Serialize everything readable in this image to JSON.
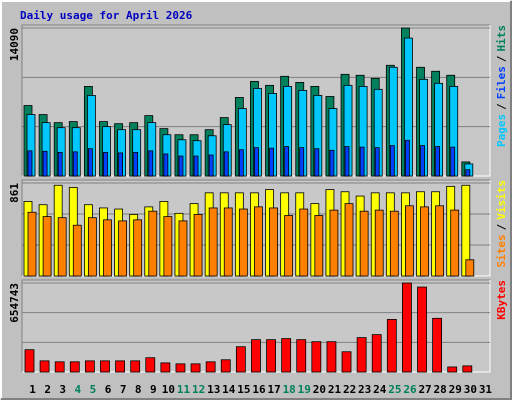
{
  "chart_data": [
    {
      "type": "bar",
      "title": "Daily usage for April 2026",
      "title_color": "#0000c0",
      "ylim": [
        0,
        14090
      ],
      "yticks": [
        14090
      ],
      "grid_divisions": 3,
      "legend_separator": "/",
      "series": [
        {
          "name": "Hits",
          "color": "#00805c",
          "values": [
            6710,
            5850,
            5080,
            5180,
            8530,
            5180,
            4980,
            5080,
            5750,
            4510,
            3930,
            3930,
            4410,
            5560,
            7480,
            9010,
            8630,
            9490,
            8910,
            8530,
            7570,
            9680,
            9590,
            9300,
            10540,
            14090,
            10350,
            9970,
            9590,
            1340,
            null
          ]
        },
        {
          "name": "Files",
          "color": "#0040ff",
          "values": [
            2400,
            2350,
            2250,
            2300,
            2600,
            2250,
            2200,
            2250,
            2400,
            2100,
            1900,
            1900,
            2000,
            2300,
            2500,
            2700,
            2650,
            2800,
            2700,
            2600,
            2450,
            2800,
            2750,
            2700,
            2900,
            3400,
            2900,
            2800,
            2750,
            600,
            null
          ]
        },
        {
          "name": "Pages",
          "color": "#00c8ff",
          "values": [
            5850,
            5080,
            4600,
            4600,
            7670,
            4700,
            4410,
            4410,
            5080,
            3930,
            3450,
            3360,
            3830,
            4890,
            6420,
            8340,
            7860,
            8530,
            8150,
            7670,
            6420,
            8630,
            8530,
            8250,
            10350,
            13130,
            9200,
            8820,
            8530,
            1150,
            null
          ]
        }
      ]
    },
    {
      "type": "bar",
      "ylim": [
        0,
        861
      ],
      "yticks": [
        861
      ],
      "grid_divisions": 3,
      "legend_separator": "/",
      "series": [
        {
          "name": "Visits",
          "color": "#ffff00",
          "values": [
            690,
            660,
            840,
            820,
            660,
            630,
            620,
            570,
            640,
            690,
            580,
            670,
            770,
            770,
            770,
            770,
            800,
            770,
            770,
            670,
            800,
            780,
            740,
            770,
            770,
            770,
            780,
            780,
            830,
            840,
            null
          ]
        },
        {
          "name": "Sites",
          "color": "#ff8000",
          "values": [
            590,
            550,
            540,
            470,
            540,
            520,
            510,
            520,
            600,
            550,
            510,
            570,
            630,
            630,
            620,
            640,
            630,
            560,
            620,
            560,
            610,
            670,
            600,
            610,
            600,
            650,
            640,
            650,
            610,
            150,
            null
          ]
        }
      ]
    },
    {
      "type": "bar",
      "ylim": [
        0,
        654743
      ],
      "yticks": [
        654743
      ],
      "grid_divisions": 3,
      "categories": [
        "1",
        "2",
        "3",
        "4",
        "5",
        "6",
        "7",
        "8",
        "9",
        "10",
        "11",
        "12",
        "13",
        "14",
        "15",
        "16",
        "17",
        "18",
        "19",
        "20",
        "21",
        "22",
        "23",
        "24",
        "25",
        "26",
        "27",
        "28",
        "29",
        "30",
        "31"
      ],
      "category_colors": [
        "#000000",
        "#000000",
        "#000000",
        "#00805c",
        "#00805c",
        "#000000",
        "#000000",
        "#000000",
        "#000000",
        "#000000",
        "#00805c",
        "#00805c",
        "#000000",
        "#000000",
        "#000000",
        "#000000",
        "#000000",
        "#00805c",
        "#00805c",
        "#000000",
        "#000000",
        "#000000",
        "#000000",
        "#000000",
        "#00805c",
        "#00805c",
        "#000000",
        "#000000",
        "#000000",
        "#000000",
        "#000000"
      ],
      "series": [
        {
          "name": "KBytes",
          "color": "#ff0000",
          "values": [
            164000,
            82000,
            75000,
            75000,
            82000,
            82000,
            82000,
            82000,
            105000,
            67000,
            60000,
            60000,
            75000,
            90000,
            186000,
            238000,
            238000,
            246000,
            238000,
            223000,
            223000,
            149000,
            253000,
            275000,
            387000,
            654743,
            625000,
            395000,
            37000,
            45000,
            null
          ]
        }
      ]
    }
  ]
}
